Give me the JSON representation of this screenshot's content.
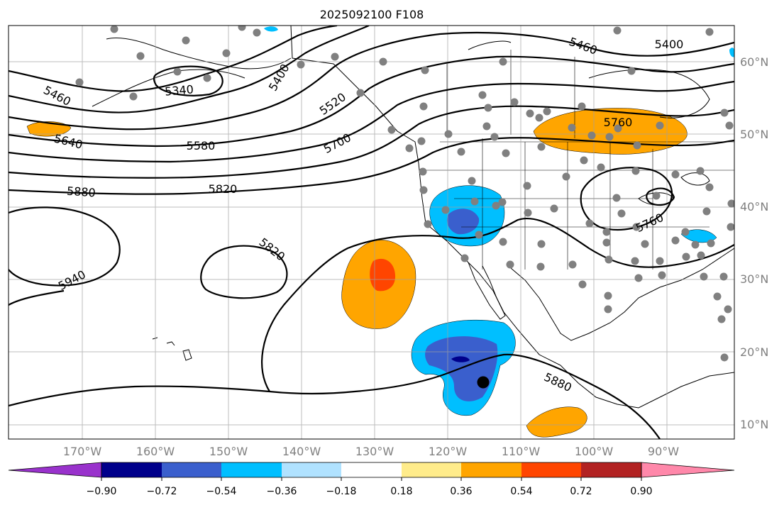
{
  "title": "2025092100 F108",
  "lon_ticks": [
    "170°W",
    "160°W",
    "150°W",
    "140°W",
    "130°W",
    "120°W",
    "110°W",
    "100°W",
    "90°W"
  ],
  "lat_ticks": [
    "10°N",
    "20°N",
    "30°N",
    "40°N",
    "50°N",
    "60°N"
  ],
  "contour_labels": [
    "5460",
    "5340",
    "5400",
    "5520",
    "5640",
    "5580",
    "5700",
    "5880",
    "5820",
    "5820",
    "5940",
    "5460",
    "5400",
    "5760",
    "5760",
    "5880"
  ],
  "colorbar": {
    "ticks": [
      "−0.90",
      "−0.72",
      "−0.54",
      "−0.36",
      "−0.18",
      "0.18",
      "0.36",
      "0.54",
      "0.72",
      "0.90"
    ],
    "colors": [
      "#9932cc",
      "#00008b",
      "#3a5fcd",
      "#00bfff",
      "#b0e2ff",
      "#ffffff",
      "#ffec8b",
      "#ffa500",
      "#ff4500",
      "#b22222",
      "#ff88aa"
    ]
  },
  "colors": {
    "land_outline": "#000000",
    "stations": "#808080",
    "grid": "#a0a0a0",
    "storm_marker": "#000000"
  }
}
